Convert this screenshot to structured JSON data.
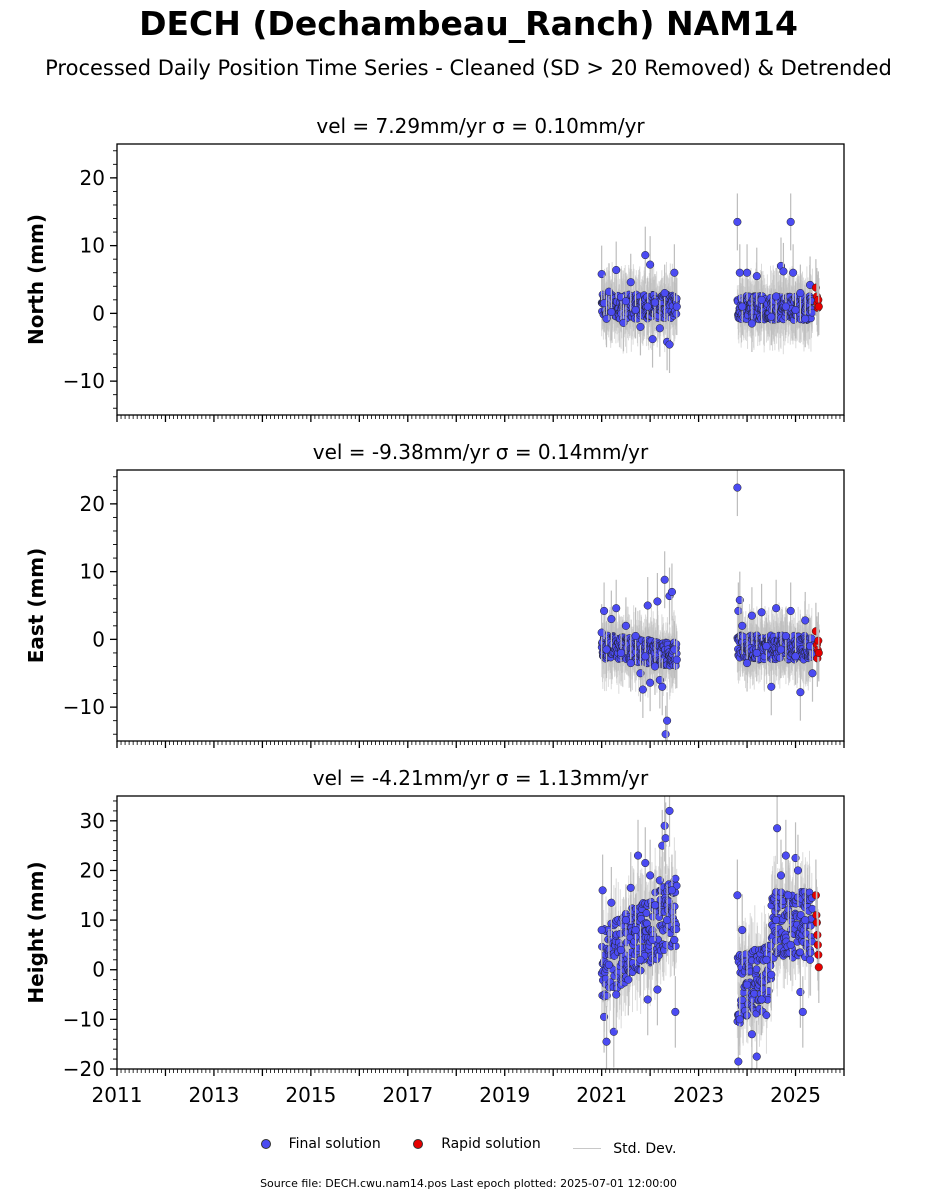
{
  "title": "DECH (Dechambeau_Ranch) NAM14",
  "subtitle": "Processed Daily Position Time Series - Cleaned (SD > 20 Removed) & Detrended",
  "legend": {
    "final": "Final solution",
    "rapid": "Rapid solution",
    "stddev": "Std. Dev."
  },
  "footer": "Source file: DECH.cwu.nam14.pos  Last epoch plotted: 2025-07-01 12:00:00",
  "colors": {
    "final": "#4b4bf2",
    "rapid": "#e60000",
    "errorbar": "#bdbdbd"
  },
  "chart_data": [
    {
      "type": "scatter",
      "title": "vel = 7.29mm/yr   σ = 0.10mm/yr",
      "ylabel": "North (mm)",
      "xlim": [
        2011,
        2026
      ],
      "ylim": [
        -15,
        25
      ],
      "yticks": [
        -10,
        0,
        10,
        20
      ],
      "series": [
        {
          "name": "Final solution",
          "points": [
            [
              2021.0,
              5.8
            ],
            [
              2021.05,
              1.5
            ],
            [
              2021.1,
              -0.8
            ],
            [
              2021.15,
              3.2
            ],
            [
              2021.2,
              0.2
            ],
            [
              2021.3,
              6.4
            ],
            [
              2021.4,
              2.4
            ],
            [
              2021.45,
              -1.4
            ],
            [
              2021.5,
              1.8
            ],
            [
              2021.6,
              4.6
            ],
            [
              2021.7,
              0.5
            ],
            [
              2021.8,
              -2.0
            ],
            [
              2021.9,
              8.6
            ],
            [
              2021.95,
              1.0
            ],
            [
              2022.0,
              7.2
            ],
            [
              2022.05,
              -3.8
            ],
            [
              2022.1,
              1.6
            ],
            [
              2022.2,
              -2.2
            ],
            [
              2022.3,
              3.0
            ],
            [
              2022.35,
              -4.2
            ],
            [
              2022.4,
              -4.6
            ],
            [
              2022.5,
              6.0
            ],
            [
              2022.55,
              1.0
            ],
            [
              2023.8,
              13.5
            ],
            [
              2023.85,
              6.0
            ],
            [
              2023.9,
              1.0
            ],
            [
              2024.0,
              6.0
            ],
            [
              2024.1,
              -1.5
            ],
            [
              2024.2,
              5.5
            ],
            [
              2024.3,
              2.0
            ],
            [
              2024.5,
              -0.5
            ],
            [
              2024.6,
              2.5
            ],
            [
              2024.7,
              7.0
            ],
            [
              2024.75,
              6.2
            ],
            [
              2024.8,
              1.0
            ],
            [
              2024.9,
              13.5
            ],
            [
              2024.95,
              6.0
            ],
            [
              2025.0,
              0.5
            ],
            [
              2025.1,
              3.0
            ],
            [
              2025.2,
              -0.8
            ],
            [
              2025.3,
              4.2
            ]
          ]
        },
        {
          "name": "Rapid solution",
          "points": [
            [
              2025.42,
              3.8
            ],
            [
              2025.44,
              2.5
            ],
            [
              2025.45,
              1.5
            ],
            [
              2025.46,
              0.8
            ],
            [
              2025.47,
              2.0
            ],
            [
              2025.48,
              1.0
            ]
          ]
        }
      ]
    },
    {
      "type": "scatter",
      "title": "vel = -9.38mm/yr   σ = 0.14mm/yr",
      "ylabel": "East (mm)",
      "xlim": [
        2011,
        2026
      ],
      "ylim": [
        -15,
        25
      ],
      "yticks": [
        -10,
        0,
        10,
        20
      ],
      "series": [
        {
          "name": "Final solution",
          "points": [
            [
              2021.0,
              1.0
            ],
            [
              2021.05,
              4.2
            ],
            [
              2021.1,
              -1.5
            ],
            [
              2021.2,
              3.0
            ],
            [
              2021.3,
              4.6
            ],
            [
              2021.4,
              -2.0
            ],
            [
              2021.5,
              2.0
            ],
            [
              2021.6,
              -3.5
            ],
            [
              2021.7,
              0.5
            ],
            [
              2021.8,
              -5.0
            ],
            [
              2021.85,
              -7.4
            ],
            [
              2021.9,
              -2.5
            ],
            [
              2021.95,
              5.0
            ],
            [
              2022.0,
              -6.4
            ],
            [
              2022.1,
              -4.0
            ],
            [
              2022.15,
              5.6
            ],
            [
              2022.2,
              -6.0
            ],
            [
              2022.25,
              -7.0
            ],
            [
              2022.3,
              8.8
            ],
            [
              2022.32,
              -14.0
            ],
            [
              2022.35,
              -12.0
            ],
            [
              2022.4,
              6.4
            ],
            [
              2022.45,
              7.0
            ],
            [
              2022.5,
              -1.5
            ],
            [
              2022.55,
              -3.0
            ],
            [
              2023.8,
              22.4
            ],
            [
              2023.82,
              4.2
            ],
            [
              2023.85,
              5.8
            ],
            [
              2023.9,
              2.0
            ],
            [
              2024.0,
              -3.5
            ],
            [
              2024.1,
              3.5
            ],
            [
              2024.2,
              -2.0
            ],
            [
              2024.3,
              4.0
            ],
            [
              2024.4,
              -1.0
            ],
            [
              2024.5,
              -7.0
            ],
            [
              2024.6,
              4.6
            ],
            [
              2024.7,
              -1.5
            ],
            [
              2024.8,
              0.5
            ],
            [
              2024.9,
              4.2
            ],
            [
              2025.0,
              -2.5
            ],
            [
              2025.1,
              -7.8
            ],
            [
              2025.2,
              2.8
            ],
            [
              2025.3,
              -1.0
            ],
            [
              2025.35,
              -5.0
            ]
          ]
        },
        {
          "name": "Rapid solution",
          "points": [
            [
              2025.42,
              1.2
            ],
            [
              2025.44,
              -0.8
            ],
            [
              2025.45,
              -2.8
            ],
            [
              2025.46,
              -1.6
            ],
            [
              2025.47,
              -0.2
            ],
            [
              2025.48,
              -2.0
            ]
          ]
        }
      ]
    },
    {
      "type": "scatter",
      "title": "vel = -4.21mm/yr   σ = 1.13mm/yr",
      "ylabel": "Height (mm)",
      "xlim": [
        2011,
        2026
      ],
      "ylim": [
        -20,
        35
      ],
      "yticks": [
        -20,
        -10,
        0,
        10,
        20,
        30
      ],
      "xticks": [
        2011,
        2013,
        2015,
        2017,
        2019,
        2021,
        2023,
        2025
      ],
      "series": [
        {
          "name": "Final solution",
          "points": [
            [
              2021.0,
              8.0
            ],
            [
              2021.02,
              16.0
            ],
            [
              2021.05,
              -9.5
            ],
            [
              2021.1,
              -14.5
            ],
            [
              2021.15,
              1.0
            ],
            [
              2021.2,
              13.5
            ],
            [
              2021.25,
              -12.5
            ],
            [
              2021.3,
              -5.0
            ],
            [
              2021.4,
              4.0
            ],
            [
              2021.5,
              10.0
            ],
            [
              2021.55,
              -2.0
            ],
            [
              2021.6,
              16.5
            ],
            [
              2021.7,
              8.0
            ],
            [
              2021.75,
              23.0
            ],
            [
              2021.8,
              2.0
            ],
            [
              2021.9,
              21.5
            ],
            [
              2021.95,
              -6.0
            ],
            [
              2022.0,
              19.0
            ],
            [
              2022.05,
              6.0
            ],
            [
              2022.1,
              13.0
            ],
            [
              2022.15,
              -4.0
            ],
            [
              2022.2,
              18.0
            ],
            [
              2022.25,
              25.0
            ],
            [
              2022.3,
              29.0
            ],
            [
              2022.32,
              26.5
            ],
            [
              2022.35,
              10.0
            ],
            [
              2022.4,
              32.0
            ],
            [
              2022.45,
              16.0
            ],
            [
              2022.5,
              6.0
            ],
            [
              2022.52,
              -8.5
            ],
            [
              2023.8,
              15.0
            ],
            [
              2023.82,
              -18.5
            ],
            [
              2023.85,
              -10.0
            ],
            [
              2023.9,
              8.0
            ],
            [
              2024.0,
              -3.0
            ],
            [
              2024.1,
              -13.0
            ],
            [
              2024.2,
              -17.5
            ],
            [
              2024.3,
              -6.0
            ],
            [
              2024.4,
              2.0
            ],
            [
              2024.5,
              -1.0
            ],
            [
              2024.6,
              10.0
            ],
            [
              2024.62,
              28.5
            ],
            [
              2024.7,
              19.0
            ],
            [
              2024.8,
              23.0
            ],
            [
              2024.85,
              15.0
            ],
            [
              2024.9,
              5.0
            ],
            [
              2025.0,
              22.5
            ],
            [
              2025.05,
              20.0
            ],
            [
              2025.1,
              -4.5
            ],
            [
              2025.15,
              -8.5
            ],
            [
              2025.2,
              10.0
            ],
            [
              2025.3,
              2.0
            ]
          ]
        },
        {
          "name": "Rapid solution",
          "points": [
            [
              2025.42,
              15.0
            ],
            [
              2025.43,
              11.0
            ],
            [
              2025.44,
              9.5
            ],
            [
              2025.45,
              7.0
            ],
            [
              2025.46,
              5.0
            ],
            [
              2025.47,
              3.0
            ],
            [
              2025.48,
              0.5
            ]
          ]
        }
      ]
    }
  ]
}
